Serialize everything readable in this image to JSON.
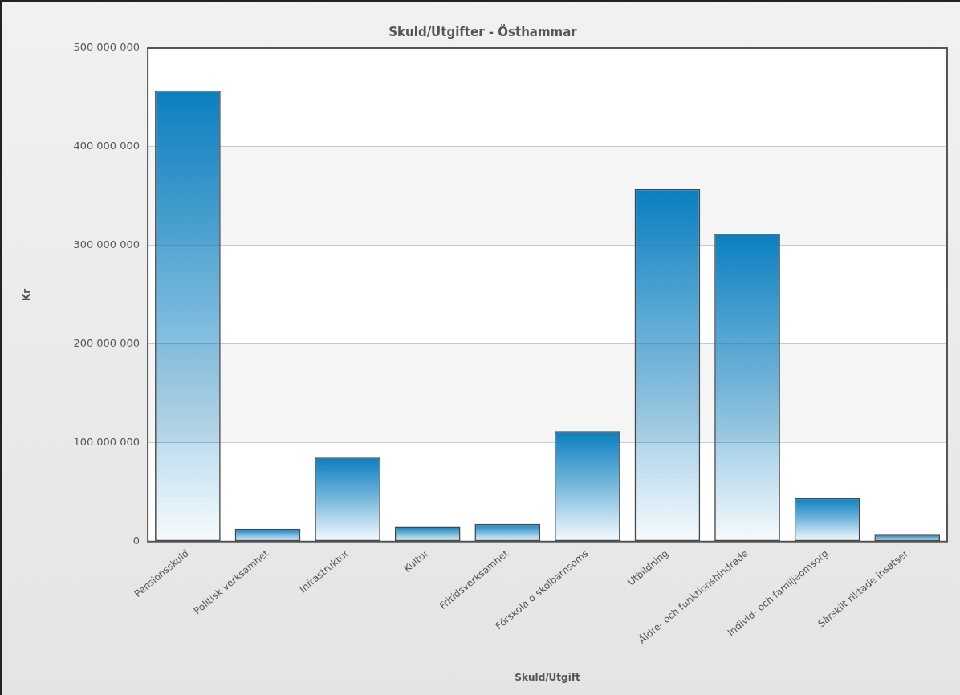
{
  "chart_data": {
    "type": "bar",
    "title": "Skuld/Utgifter - Östhammar",
    "xlabel": "Skuld/Utgift",
    "ylabel": "Kr",
    "categories": [
      "Pensionsskuld",
      "Politisk verksamhet",
      "Infrastruktur",
      "Kultur",
      "Fritidsverksamhet",
      "Förskola o skolbarnsoms",
      "Utbildning",
      "Äldre- och funktionshindrade",
      "Individ- och familjeomsorg",
      "Särskilt riktade insatser"
    ],
    "values": [
      457000000,
      13000000,
      85000000,
      15000000,
      18000000,
      112000000,
      357000000,
      312000000,
      44000000,
      7000000
    ],
    "color": "#0a7fc0",
    "ylim": [
      0,
      500000000
    ],
    "yticks": [
      {
        "value": 0,
        "label": "0"
      },
      {
        "value": 100000000,
        "label": "100 000 000"
      },
      {
        "value": 200000000,
        "label": "200 000 000"
      },
      {
        "value": 300000000,
        "label": "300 000 000"
      },
      {
        "value": 400000000,
        "label": "400 000 000"
      },
      {
        "value": 500000000,
        "label": "500 000 000"
      }
    ],
    "grid": "y",
    "legend": false
  }
}
